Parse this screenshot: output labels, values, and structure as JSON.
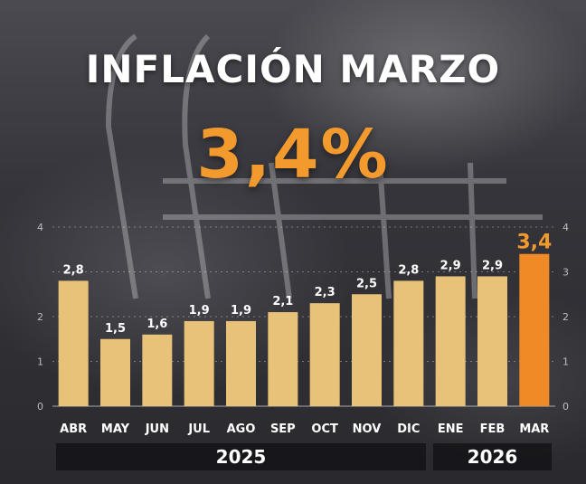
{
  "header": {
    "title": "INFLACIÓN MARZO",
    "headline_value": "3,4%"
  },
  "colors": {
    "bar_default": "#e9c27a",
    "bar_highlight": "#f08a26",
    "highlight_label": "#f39a2e",
    "text": "#ffffff",
    "axis_text": "#bdbdbd"
  },
  "chart_data": {
    "type": "bar",
    "categories": [
      "ABR",
      "MAY",
      "JUN",
      "JUL",
      "AGO",
      "SEP",
      "OCT",
      "NOV",
      "DIC",
      "ENE",
      "FEB",
      "MAR"
    ],
    "values": [
      2.8,
      1.5,
      1.6,
      1.9,
      1.9,
      2.1,
      2.3,
      2.5,
      2.8,
      2.9,
      2.9,
      3.4
    ],
    "value_labels": [
      "2,8",
      "1,5",
      "1,6",
      "1,9",
      "1,9",
      "2,1",
      "2,3",
      "2,5",
      "2,8",
      "2,9",
      "2,9",
      "3,4"
    ],
    "highlight_index": 11,
    "ylim": [
      0,
      4
    ],
    "left_ticks": [
      "0",
      "1",
      "2",
      "4"
    ],
    "right_ticks": [
      "0",
      "1",
      "2",
      "3",
      "4"
    ],
    "gridlines": true,
    "year_groups": [
      {
        "label": "2025",
        "from": 0,
        "to": 8
      },
      {
        "label": "2026",
        "from": 9,
        "to": 11
      }
    ],
    "title": "INFLACIÓN MARZO",
    "xlabel": "",
    "ylabel": ""
  }
}
